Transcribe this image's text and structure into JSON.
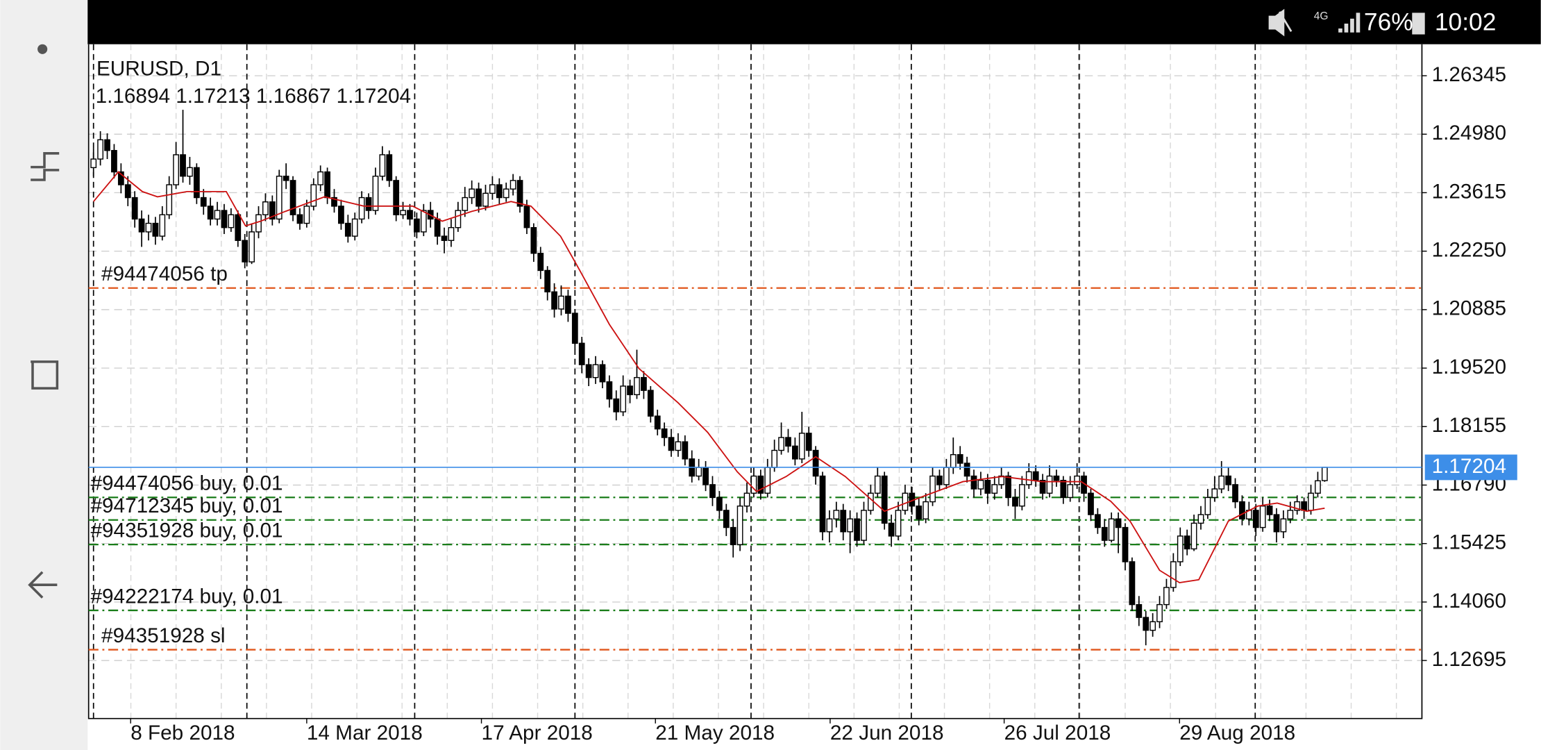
{
  "status_bar": {
    "network": "4G",
    "battery": "76%",
    "time": "10:02"
  },
  "chart_data": {
    "type": "candlestick",
    "symbol": "EURUSD, D1",
    "ohlc_label": "1.16894 1.17213 1.16867 1.17204",
    "xlim": [
      -0.71,
      193.14
    ],
    "ylim": [
      1.1134,
      1.2708
    ],
    "grid": true,
    "up_color": "#ffffff",
    "down_color": "#000000",
    "wick_color": "#000000",
    "yticks": [
      1.26345,
      {
        "value": 1.2498,
        "label": "1.24980"
      },
      1.23615,
      {
        "value": 1.2225,
        "label": "1.22250"
      },
      1.20885,
      {
        "value": 1.1952,
        "label": "1.19520"
      },
      1.18155,
      {
        "value": 1.1679,
        "label": "1.16790"
      },
      1.15425,
      {
        "value": 1.1406,
        "label": "1.14060"
      },
      1.12695
    ],
    "xticks": [
      {
        "value": 5.4,
        "label": "8 Feb 2018"
      },
      {
        "value": 31,
        "label": "14 Mar 2018"
      },
      {
        "value": 56.4,
        "label": "17 Apr 2018"
      },
      {
        "value": 81.7,
        "label": "21 May 2018"
      },
      {
        "value": 107.1,
        "label": "22 Jun 2018"
      },
      {
        "value": 132.4,
        "label": "26 Jul 2018"
      },
      {
        "value": 157.9,
        "label": "29 Aug 2018"
      }
    ],
    "period_separators": [
      0,
      22.3,
      46.7,
      70,
      95.6,
      118.9,
      143.3,
      168.9
    ],
    "bid": 1.17204,
    "bid_color": "#3d8ee8",
    "orders": [
      {
        "label": "#94474056 tp",
        "price": 1.2139,
        "color": "#e0561b"
      },
      {
        "label": "#94474056 buy, 0.01",
        "price": 1.16503,
        "color": "#1a7d1a"
      },
      {
        "label": "#94712345 buy, 0.01",
        "price": 1.15975,
        "color": "#1a7d1a"
      },
      {
        "label": "#94351928 buy, 0.01",
        "price": 1.15402,
        "color": "#1a7d1a"
      },
      {
        "label": "#94222174 buy, 0.01",
        "price": 1.13865,
        "color": "#1a7d1a"
      },
      {
        "label": "#94351928 sl",
        "price": 1.12947,
        "color": "#e0561b"
      }
    ],
    "ma": {
      "color": "#cc1111",
      "x": [
        0,
        3.6,
        7.1,
        9.3,
        13.6,
        19.3,
        22.1,
        24.3,
        27.9,
        33.6,
        39.3,
        46.4,
        50.7,
        55,
        60.7,
        63.6,
        67.9,
        70.7,
        75,
        79.3,
        85,
        89.3,
        93.6,
        96.4,
        100.7,
        105,
        109.3,
        115,
        120.7,
        126.4,
        132.1,
        137.9,
        143.6,
        147.9,
        150.7,
        155,
        157.9,
        160.7,
        165,
        169.3,
        172.1,
        176.4,
        179
      ],
      "values": [
        1.2341,
        1.241,
        1.2364,
        1.2352,
        1.2364,
        1.2364,
        1.2284,
        1.2295,
        1.2318,
        1.2352,
        1.233,
        1.233,
        1.2295,
        1.2318,
        1.2341,
        1.233,
        1.226,
        1.218,
        1.2054,
        1.1951,
        1.1871,
        1.1802,
        1.171,
        1.1664,
        1.1699,
        1.1745,
        1.1699,
        1.1618,
        1.1653,
        1.1687,
        1.1699,
        1.1687,
        1.1687,
        1.1641,
        1.1595,
        1.148,
        1.1451,
        1.1458,
        1.1595,
        1.163,
        1.1637,
        1.1618,
        1.1625
      ]
    },
    "candles": [
      [
        1.242,
        1.2465,
        1.24,
        1.244
      ],
      [
        1.244,
        1.2505,
        1.2425,
        1.2485
      ],
      [
        1.2485,
        1.25,
        1.244,
        1.246
      ],
      [
        1.246,
        1.2475,
        1.2395,
        1.241
      ],
      [
        1.241,
        1.243,
        1.236,
        1.238
      ],
      [
        1.238,
        1.24,
        1.233,
        1.235
      ],
      [
        1.235,
        1.2365,
        1.228,
        1.23
      ],
      [
        1.23,
        1.232,
        1.2235,
        1.227
      ],
      [
        1.227,
        1.231,
        1.225,
        1.229
      ],
      [
        1.229,
        1.2305,
        1.224,
        1.226
      ],
      [
        1.226,
        1.233,
        1.225,
        1.231
      ],
      [
        1.231,
        1.24,
        1.23,
        1.238
      ],
      [
        1.238,
        1.248,
        1.237,
        1.245
      ],
      [
        1.245,
        1.2555,
        1.2385,
        1.24
      ],
      [
        1.24,
        1.2445,
        1.238,
        1.242
      ],
      [
        1.242,
        1.243,
        1.2335,
        1.235
      ],
      [
        1.235,
        1.237,
        1.231,
        1.233
      ],
      [
        1.233,
        1.235,
        1.2285,
        1.23
      ],
      [
        1.23,
        1.234,
        1.2285,
        1.232
      ],
      [
        1.232,
        1.2335,
        1.2265,
        1.228
      ],
      [
        1.228,
        1.2325,
        1.227,
        1.231
      ],
      [
        1.231,
        1.232,
        1.2235,
        1.225
      ],
      [
        1.225,
        1.2265,
        1.2185,
        1.22
      ],
      [
        1.22,
        1.229,
        1.2195,
        1.227
      ],
      [
        1.227,
        1.233,
        1.2255,
        1.231
      ],
      [
        1.231,
        1.236,
        1.2295,
        1.234
      ],
      [
        1.234,
        1.2355,
        1.2285,
        1.23
      ],
      [
        1.23,
        1.2415,
        1.229,
        1.24
      ],
      [
        1.24,
        1.243,
        1.237,
        1.239
      ],
      [
        1.239,
        1.24,
        1.2295,
        1.231
      ],
      [
        1.231,
        1.2325,
        1.2275,
        1.229
      ],
      [
        1.229,
        1.2345,
        1.228,
        1.233
      ],
      [
        1.233,
        1.2395,
        1.232,
        1.238
      ],
      [
        1.238,
        1.2425,
        1.2365,
        1.241
      ],
      [
        1.241,
        1.242,
        1.2335,
        1.235
      ],
      [
        1.235,
        1.237,
        1.2315,
        1.233
      ],
      [
        1.233,
        1.2345,
        1.2275,
        1.229
      ],
      [
        1.229,
        1.231,
        1.2245,
        1.226
      ],
      [
        1.226,
        1.2315,
        1.225,
        1.23
      ],
      [
        1.23,
        1.2365,
        1.229,
        1.235
      ],
      [
        1.235,
        1.236,
        1.23,
        1.232
      ],
      [
        1.232,
        1.242,
        1.231,
        1.24
      ],
      [
        1.24,
        1.247,
        1.239,
        1.245
      ],
      [
        1.245,
        1.246,
        1.2375,
        1.239
      ],
      [
        1.239,
        1.24,
        1.2295,
        1.231
      ],
      [
        1.231,
        1.234,
        1.23,
        1.232
      ],
      [
        1.232,
        1.2335,
        1.2285,
        1.23
      ],
      [
        1.23,
        1.2315,
        1.2255,
        1.227
      ],
      [
        1.227,
        1.2335,
        1.226,
        1.232
      ],
      [
        1.232,
        1.234,
        1.228,
        1.23
      ],
      [
        1.23,
        1.2315,
        1.224,
        1.226
      ],
      [
        1.226,
        1.228,
        1.222,
        1.225
      ],
      [
        1.225,
        1.23,
        1.2235,
        1.228
      ],
      [
        1.228,
        1.234,
        1.227,
        1.232
      ],
      [
        1.232,
        1.2375,
        1.2305,
        1.235
      ],
      [
        1.235,
        1.239,
        1.2335,
        1.237
      ],
      [
        1.237,
        1.2385,
        1.2315,
        1.233
      ],
      [
        1.233,
        1.238,
        1.232,
        1.236
      ],
      [
        1.236,
        1.24,
        1.2345,
        1.238
      ],
      [
        1.238,
        1.2395,
        1.2335,
        1.235
      ],
      [
        1.235,
        1.2385,
        1.234,
        1.237
      ],
      [
        1.237,
        1.2405,
        1.2355,
        1.239
      ],
      [
        1.239,
        1.24,
        1.2315,
        1.233
      ],
      [
        1.233,
        1.2345,
        1.2265,
        1.228
      ],
      [
        1.228,
        1.229,
        1.22,
        1.222
      ],
      [
        1.222,
        1.2235,
        1.216,
        1.218
      ],
      [
        1.218,
        1.219,
        1.211,
        1.213
      ],
      [
        1.213,
        1.215,
        1.207,
        1.209
      ],
      [
        1.209,
        1.2145,
        1.2075,
        1.212
      ],
      [
        1.212,
        1.2135,
        1.206,
        1.208
      ],
      [
        1.208,
        1.209,
        1.1995,
        1.201
      ],
      [
        1.201,
        1.2025,
        1.194,
        1.196
      ],
      [
        1.196,
        1.1975,
        1.191,
        1.193
      ],
      [
        1.193,
        1.198,
        1.1915,
        1.196
      ],
      [
        1.196,
        1.197,
        1.1905,
        1.192
      ],
      [
        1.192,
        1.1935,
        1.186,
        1.188
      ],
      [
        1.188,
        1.19,
        1.183,
        1.185
      ],
      [
        1.185,
        1.1935,
        1.184,
        1.191
      ],
      [
        1.191,
        1.1925,
        1.187,
        1.189
      ],
      [
        1.189,
        1.1995,
        1.188,
        1.193
      ],
      [
        1.193,
        1.1945,
        1.188,
        1.19
      ],
      [
        1.19,
        1.191,
        1.1825,
        1.184
      ],
      [
        1.184,
        1.1855,
        1.1795,
        1.181
      ],
      [
        1.181,
        1.1825,
        1.177,
        1.179
      ],
      [
        1.179,
        1.181,
        1.1745,
        1.176
      ],
      [
        1.176,
        1.18,
        1.1745,
        1.178
      ],
      [
        1.178,
        1.1795,
        1.1725,
        1.174
      ],
      [
        1.174,
        1.176,
        1.1685,
        1.17
      ],
      [
        1.17,
        1.174,
        1.169,
        1.172
      ],
      [
        1.172,
        1.1735,
        1.1665,
        1.168
      ],
      [
        1.168,
        1.17,
        1.163,
        1.165
      ],
      [
        1.165,
        1.1665,
        1.16,
        1.162
      ],
      [
        1.162,
        1.1635,
        1.156,
        1.158
      ],
      [
        1.158,
        1.16,
        1.151,
        1.154
      ],
      [
        1.154,
        1.165,
        1.1525,
        1.163
      ],
      [
        1.163,
        1.1685,
        1.1615,
        1.166
      ],
      [
        1.166,
        1.172,
        1.165,
        1.17
      ],
      [
        1.17,
        1.1715,
        1.1645,
        1.166
      ],
      [
        1.166,
        1.174,
        1.165,
        1.172
      ],
      [
        1.172,
        1.1785,
        1.171,
        1.176
      ],
      [
        1.176,
        1.1825,
        1.175,
        1.179
      ],
      [
        1.179,
        1.181,
        1.1755,
        1.177
      ],
      [
        1.177,
        1.179,
        1.1725,
        1.174
      ],
      [
        1.174,
        1.185,
        1.173,
        1.18
      ],
      [
        1.18,
        1.1815,
        1.1745,
        1.176
      ],
      [
        1.176,
        1.177,
        1.168,
        1.17
      ],
      [
        1.17,
        1.171,
        1.155,
        1.157
      ],
      [
        1.157,
        1.162,
        1.1545,
        1.16
      ],
      [
        1.16,
        1.164,
        1.158,
        1.162
      ],
      [
        1.162,
        1.1635,
        1.155,
        1.157
      ],
      [
        1.157,
        1.162,
        1.152,
        1.16
      ],
      [
        1.16,
        1.1615,
        1.1535,
        1.155
      ],
      [
        1.155,
        1.164,
        1.154,
        1.162
      ],
      [
        1.162,
        1.168,
        1.161,
        1.166
      ],
      [
        1.166,
        1.172,
        1.165,
        1.17
      ],
      [
        1.17,
        1.171,
        1.1575,
        1.159
      ],
      [
        1.159,
        1.161,
        1.1535,
        1.156
      ],
      [
        1.156,
        1.164,
        1.155,
        1.162
      ],
      [
        1.162,
        1.168,
        1.161,
        1.166
      ],
      [
        1.166,
        1.1675,
        1.161,
        1.163
      ],
      [
        1.163,
        1.165,
        1.1585,
        1.16
      ],
      [
        1.16,
        1.166,
        1.159,
        1.164
      ],
      [
        1.164,
        1.172,
        1.163,
        1.17
      ],
      [
        1.17,
        1.1715,
        1.1665,
        1.168
      ],
      [
        1.168,
        1.174,
        1.167,
        1.172
      ],
      [
        1.172,
        1.179,
        1.1705,
        1.175
      ],
      [
        1.175,
        1.177,
        1.1715,
        1.173
      ],
      [
        1.173,
        1.1745,
        1.1685,
        1.17
      ],
      [
        1.17,
        1.1715,
        1.165,
        1.167
      ],
      [
        1.167,
        1.171,
        1.1655,
        1.169
      ],
      [
        1.169,
        1.1705,
        1.1635,
        1.166
      ],
      [
        1.166,
        1.17,
        1.1645,
        1.168
      ],
      [
        1.168,
        1.172,
        1.167,
        1.17
      ],
      [
        1.17,
        1.171,
        1.163,
        1.165
      ],
      [
        1.165,
        1.167,
        1.16,
        1.163
      ],
      [
        1.163,
        1.17,
        1.162,
        1.168
      ],
      [
        1.168,
        1.173,
        1.167,
        1.171
      ],
      [
        1.171,
        1.1725,
        1.1675,
        1.169
      ],
      [
        1.169,
        1.1705,
        1.1645,
        1.166
      ],
      [
        1.166,
        1.1725,
        1.165,
        1.17
      ],
      [
        1.17,
        1.1715,
        1.1675,
        1.169
      ],
      [
        1.169,
        1.17,
        1.1635,
        1.165
      ],
      [
        1.165,
        1.17,
        1.164,
        1.168
      ],
      [
        1.168,
        1.173,
        1.167,
        1.17
      ],
      [
        1.17,
        1.171,
        1.164,
        1.166
      ],
      [
        1.166,
        1.167,
        1.1595,
        1.161
      ],
      [
        1.161,
        1.1625,
        1.1565,
        1.158
      ],
      [
        1.158,
        1.16,
        1.1535,
        1.155
      ],
      [
        1.155,
        1.1615,
        1.1545,
        1.16
      ],
      [
        1.16,
        1.1615,
        1.152,
        1.158
      ],
      [
        1.158,
        1.159,
        1.148,
        1.15
      ],
      [
        1.15,
        1.151,
        1.1385,
        1.14
      ],
      [
        1.14,
        1.142,
        1.135,
        1.137
      ],
      [
        1.137,
        1.1385,
        1.1305,
        1.134
      ],
      [
        1.134,
        1.138,
        1.1325,
        1.136
      ],
      [
        1.136,
        1.142,
        1.1345,
        1.14
      ],
      [
        1.14,
        1.146,
        1.139,
        1.144
      ],
      [
        1.144,
        1.152,
        1.143,
        1.15
      ],
      [
        1.15,
        1.158,
        1.149,
        1.156
      ],
      [
        1.156,
        1.1575,
        1.1515,
        1.153
      ],
      [
        1.153,
        1.161,
        1.1525,
        1.159
      ],
      [
        1.159,
        1.163,
        1.1575,
        1.161
      ],
      [
        1.161,
        1.167,
        1.16,
        1.165
      ],
      [
        1.165,
        1.17,
        1.164,
        1.167
      ],
      [
        1.167,
        1.1735,
        1.166,
        1.17
      ],
      [
        1.17,
        1.172,
        1.1665,
        1.168
      ],
      [
        1.168,
        1.1695,
        1.1625,
        1.164
      ],
      [
        1.164,
        1.1655,
        1.1585,
        1.16
      ],
      [
        1.16,
        1.164,
        1.1585,
        1.162
      ],
      [
        1.162,
        1.1635,
        1.156,
        1.158
      ],
      [
        1.158,
        1.165,
        1.157,
        1.163
      ],
      [
        1.163,
        1.1645,
        1.1595,
        1.161
      ],
      [
        1.161,
        1.1625,
        1.1545,
        1.157
      ],
      [
        1.157,
        1.162,
        1.1555,
        1.16
      ],
      [
        1.16,
        1.164,
        1.159,
        1.162
      ],
      [
        1.162,
        1.1655,
        1.161,
        1.164
      ],
      [
        1.164,
        1.165,
        1.16,
        1.162
      ],
      [
        1.162,
        1.168,
        1.161,
        1.166
      ],
      [
        1.166,
        1.171,
        1.165,
        1.1689
      ],
      [
        1.16894,
        1.17213,
        1.16867,
        1.17204
      ]
    ]
  }
}
